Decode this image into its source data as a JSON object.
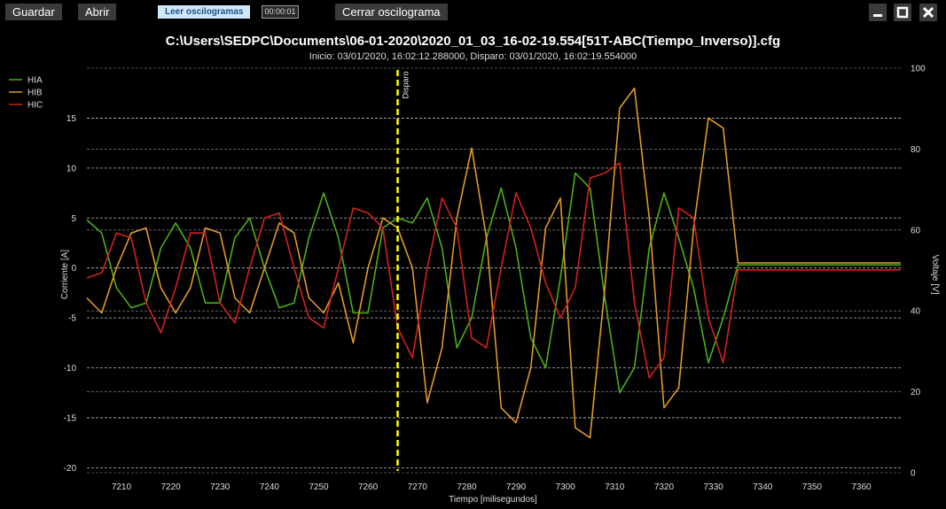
{
  "toolbar": {
    "save_label": "Guardar",
    "open_label": "Abrir",
    "read_label": "Leer oscilogramas",
    "time_value": "00:00:01",
    "close_label": "Cerrar oscilograma"
  },
  "window_controls": {
    "minimize_icon": "minimize-icon",
    "maximize_icon": "maximize-icon",
    "close_icon": "close-icon"
  },
  "chart_data": {
    "type": "line",
    "title": "C:\\Users\\SEDPC\\Documents\\06-01-2020\\2020_01_03_16-02-19.554[51T-ABC(Tiempo_Inverso)].cfg",
    "subtitle": "Inicio: 03/01/2020, 16:02:12.288000, Disparo: 03/01/2020, 16:02:19.554000",
    "xlabel": "Tiempo [milisegundos]",
    "ylabel": "Corriente [A]",
    "y2label": "Voltaje [V]",
    "xlim": [
      7203,
      7368
    ],
    "ylim": [
      -20.5,
      20
    ],
    "y2lim": [
      0,
      100
    ],
    "xticks": [
      7210,
      7220,
      7230,
      7240,
      7250,
      7260,
      7270,
      7280,
      7290,
      7300,
      7310,
      7320,
      7330,
      7340,
      7350,
      7360
    ],
    "yticks": [
      15,
      10,
      5,
      0,
      -5,
      -10,
      -15,
      -20
    ],
    "y2ticks": [
      100,
      80,
      60,
      40,
      20,
      0
    ],
    "grid": "dashed horizontal",
    "legend_position": "top-left",
    "marker": {
      "label": "Disparo",
      "x": 7266,
      "color": "#ffff00"
    },
    "series": [
      {
        "name": "HIA",
        "color": "#4caf1a",
        "x": [
          7203,
          7206,
          7209,
          7212,
          7215,
          7218,
          7221,
          7224,
          7227,
          7230,
          7233,
          7236,
          7239,
          7242,
          7245,
          7248,
          7251,
          7254,
          7257,
          7260,
          7263,
          7266,
          7269,
          7272,
          7275,
          7278,
          7281,
          7284,
          7287,
          7290,
          7293,
          7296,
          7299,
          7302,
          7305,
          7308,
          7311,
          7314,
          7317,
          7320,
          7323,
          7326,
          7329,
          7332,
          7335,
          7338,
          7345,
          7355,
          7368
        ],
        "y": [
          4.8,
          3.5,
          -2,
          -4,
          -3.5,
          2,
          4.5,
          2,
          -3.5,
          -3.5,
          3,
          5,
          0,
          -4,
          -3.5,
          3,
          7.5,
          3,
          -4.5,
          -4.5,
          4,
          5,
          4.5,
          7,
          2,
          -8,
          -5,
          3,
          8,
          2,
          -7,
          -10,
          -1,
          9.5,
          8,
          -3,
          -12.5,
          -10,
          2,
          7.5,
          3,
          -2,
          -9.5,
          -5,
          0.3,
          0.3,
          0.3,
          0.3,
          0.3
        ]
      },
      {
        "name": "HIB",
        "color": "#e09a28",
        "x": [
          7203,
          7206,
          7209,
          7212,
          7215,
          7218,
          7221,
          7224,
          7227,
          7230,
          7233,
          7236,
          7239,
          7242,
          7245,
          7248,
          7251,
          7254,
          7257,
          7260,
          7263,
          7266,
          7269,
          7272,
          7275,
          7278,
          7281,
          7284,
          7287,
          7290,
          7293,
          7296,
          7299,
          7302,
          7305,
          7308,
          7311,
          7314,
          7317,
          7320,
          7323,
          7326,
          7329,
          7332,
          7335,
          7338,
          7345,
          7355,
          7368
        ],
        "y": [
          -3,
          -4.5,
          0,
          3.5,
          4,
          -2,
          -4.5,
          -2,
          4,
          3.5,
          -3,
          -4.5,
          0,
          4.5,
          3.5,
          -3,
          -4.5,
          -1.5,
          -7.5,
          0,
          5,
          4,
          0,
          -13.5,
          -8,
          5,
          12,
          3,
          -14,
          -15.5,
          -10,
          4,
          7,
          -16,
          -17,
          -2,
          16,
          18,
          5,
          -14,
          -12,
          4,
          15,
          14,
          0.5,
          0.5,
          0.5,
          0.5,
          0.5
        ]
      },
      {
        "name": "HIC",
        "color": "#d42020",
        "x": [
          7203,
          7206,
          7209,
          7212,
          7215,
          7218,
          7221,
          7224,
          7227,
          7230,
          7233,
          7236,
          7239,
          7242,
          7245,
          7248,
          7251,
          7254,
          7257,
          7260,
          7263,
          7266,
          7269,
          7272,
          7275,
          7278,
          7281,
          7284,
          7287,
          7290,
          7293,
          7296,
          7299,
          7302,
          7305,
          7308,
          7311,
          7314,
          7317,
          7320,
          7323,
          7326,
          7329,
          7332,
          7335,
          7338,
          7345,
          7355,
          7368
        ],
        "y": [
          -1,
          -0.5,
          3.5,
          3,
          -3.5,
          -6.5,
          -2,
          3.5,
          3.5,
          -3.5,
          -5.5,
          0,
          5,
          5.5,
          0,
          -5,
          -6,
          0,
          6,
          5.5,
          4,
          -6,
          -9,
          0,
          7,
          4,
          -7,
          -8,
          0,
          7.5,
          4,
          -1.5,
          -5,
          -2,
          9,
          9.5,
          10.5,
          -3.5,
          -11,
          -9,
          6,
          5,
          -5,
          -9.5,
          -0.2,
          -0.2,
          -0.2,
          -0.2,
          -0.2
        ]
      }
    ]
  }
}
